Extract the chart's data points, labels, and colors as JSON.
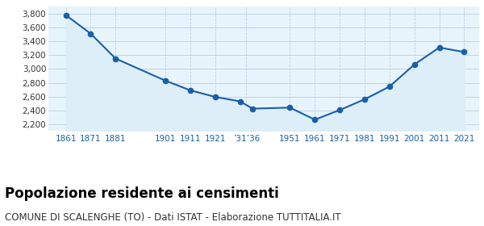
{
  "years": [
    1861,
    1871,
    1881,
    1901,
    1911,
    1921,
    1931,
    1936,
    1951,
    1961,
    1971,
    1981,
    1991,
    2001,
    2011,
    2021
  ],
  "population": [
    3780,
    3510,
    3150,
    2830,
    2690,
    2595,
    2530,
    2425,
    2440,
    2265,
    2405,
    2560,
    2745,
    3065,
    3310,
    3245
  ],
  "ylim": [
    2100,
    3900
  ],
  "yticks": [
    2200,
    2400,
    2600,
    2800,
    3000,
    3200,
    3400,
    3600,
    3800
  ],
  "line_color": "#1a5fa8",
  "fill_color": "#ddeef8",
  "marker_color": "#1a5fa8",
  "grid_color": "#b8cfe0",
  "bg_color": "#e8f4fc",
  "title": "Popolazione residente ai censimenti",
  "subtitle": "COMUNE DI SCALENGHE (TO) - Dati ISTAT - Elaborazione TUTTITALIA.IT",
  "title_fontsize": 12,
  "subtitle_fontsize": 8.5,
  "custom_xtick_positions": [
    1861,
    1871,
    1881,
    1901,
    1911,
    1921,
    1933.5,
    1951,
    1961,
    1971,
    1981,
    1991,
    2001,
    2011,
    2021
  ],
  "custom_xtick_labels": [
    "1861",
    "1871",
    "1881",
    "1901",
    "1911",
    "1921",
    "’31’36",
    "1951",
    "1961",
    "1971",
    "1981",
    "1991",
    "2001",
    "2011",
    "2021"
  ],
  "xlim": [
    1854,
    2027
  ]
}
